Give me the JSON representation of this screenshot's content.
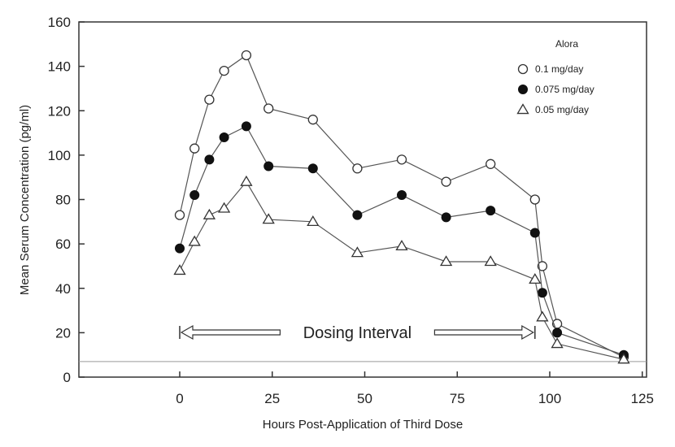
{
  "chart_data": {
    "type": "line",
    "xlabel": "Hours Post-Application of Third Dose",
    "ylabel": "Mean Serum Concentration (pg/ml)",
    "xlim": [
      -25,
      127
    ],
    "ylim": [
      0,
      160
    ],
    "xticks": [
      0,
      25,
      50,
      75,
      100,
      125
    ],
    "yticks": [
      0,
      20,
      40,
      60,
      80,
      100,
      120,
      140,
      160
    ],
    "grid": false,
    "legend_title": "Alora",
    "legend_position": "top-right",
    "reference_line": 7,
    "annotation": "Dosing Interval",
    "dosing_interval": [
      0,
      96
    ],
    "series": [
      {
        "name": "0.1 mg/day",
        "marker": "open-circle",
        "x": [
          0,
          4,
          8,
          12,
          18,
          24,
          36,
          48,
          60,
          72,
          84,
          96,
          98,
          102,
          120
        ],
        "y": [
          73,
          103,
          125,
          138,
          145,
          121,
          116,
          94,
          98,
          88,
          96,
          80,
          50,
          24,
          9
        ]
      },
      {
        "name": "0.075 mg/day",
        "marker": "filled-circle",
        "x": [
          0,
          4,
          8,
          12,
          18,
          24,
          36,
          48,
          60,
          72,
          84,
          96,
          98,
          102,
          120
        ],
        "y": [
          58,
          82,
          98,
          108,
          113,
          95,
          94,
          73,
          82,
          72,
          75,
          65,
          38,
          20,
          10
        ]
      },
      {
        "name": "0.05 mg/day",
        "marker": "open-triangle",
        "x": [
          0,
          4,
          8,
          12,
          18,
          24,
          36,
          48,
          60,
          72,
          84,
          96,
          98,
          102,
          120
        ],
        "y": [
          48,
          61,
          73,
          76,
          88,
          71,
          70,
          56,
          59,
          52,
          52,
          44,
          27,
          15,
          8
        ]
      }
    ]
  }
}
